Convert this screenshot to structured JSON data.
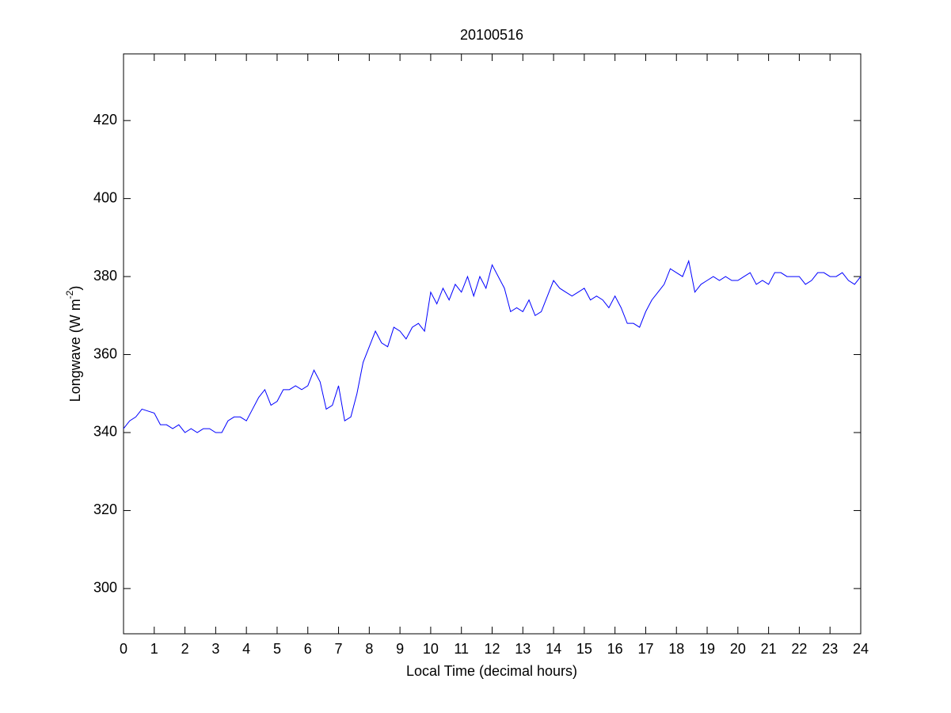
{
  "chart_data": {
    "type": "line",
    "title": "20100516",
    "x_label": "Local Time (decimal hours)",
    "y_label": {
      "text": "Longwave (W m",
      "sup": "-2",
      "end": ")"
    },
    "x": [
      0,
      0.2,
      0.4,
      0.6,
      0.8,
      1,
      1.2,
      1.4,
      1.6,
      1.8,
      2,
      2.2,
      2.4,
      2.6,
      2.8,
      3,
      3.2,
      3.4,
      3.6,
      3.8,
      4,
      4.2,
      4.4,
      4.6,
      4.8,
      5,
      5.2,
      5.4,
      5.6,
      5.8,
      6,
      6.2,
      6.4,
      6.6,
      6.8,
      7,
      7.2,
      7.4,
      7.6,
      7.8,
      8,
      8.2,
      8.4,
      8.6,
      8.8,
      9,
      9.2,
      9.4,
      9.6,
      9.8,
      10,
      10.2,
      10.4,
      10.6,
      10.8,
      11,
      11.2,
      11.4,
      11.6,
      11.8,
      12,
      12.2,
      12.4,
      12.6,
      12.8,
      13,
      13.2,
      13.4,
      13.6,
      13.8,
      14,
      14.2,
      14.4,
      14.6,
      14.8,
      15,
      15.2,
      15.4,
      15.6,
      15.8,
      16,
      16.2,
      16.4,
      16.6,
      16.8,
      17,
      17.2,
      17.4,
      17.6,
      17.8,
      18,
      18.2,
      18.4,
      18.6,
      18.8,
      19,
      19.2,
      19.4,
      19.6,
      19.8,
      20,
      20.2,
      20.4,
      20.6,
      20.8,
      21,
      21.2,
      21.4,
      21.6,
      21.8,
      22,
      22.2,
      22.4,
      22.6,
      22.8,
      23,
      23.2,
      23.4,
      23.6,
      23.8,
      24
    ],
    "series": [
      {
        "color": "#0000ff",
        "values": [
          341,
          343,
          344,
          346,
          345.5,
          345,
          342,
          342,
          341,
          342,
          340,
          341,
          340,
          341,
          341,
          340,
          340,
          343,
          344,
          344,
          343,
          346,
          349,
          351,
          347,
          348,
          351,
          351,
          352,
          351,
          352,
          356,
          353,
          346,
          347,
          352,
          343,
          344,
          350,
          358,
          362,
          366,
          363,
          362,
          367,
          366,
          364,
          367,
          368,
          366,
          376,
          373,
          377,
          374,
          378,
          376,
          380,
          375,
          380,
          377,
          383,
          380,
          377,
          371,
          372,
          371,
          374,
          370,
          371,
          375,
          379,
          377,
          376,
          375,
          376,
          377,
          374,
          375,
          374,
          372,
          375,
          372,
          368,
          368,
          367,
          371,
          374,
          376,
          378,
          382,
          381,
          380,
          384,
          376,
          378,
          379,
          380,
          379,
          380,
          379,
          379,
          380,
          381,
          378,
          379,
          378,
          381,
          381,
          380,
          380,
          380,
          378,
          379,
          381,
          381,
          380,
          380,
          381,
          379,
          378,
          380
        ]
      }
    ],
    "xlim": [
      0,
      24
    ],
    "ylim": [
      288.4,
      437.1
    ],
    "xticks": [
      0,
      1,
      2,
      3,
      4,
      5,
      6,
      7,
      8,
      9,
      10,
      11,
      12,
      13,
      14,
      15,
      16,
      17,
      18,
      19,
      20,
      21,
      22,
      23,
      24
    ],
    "yticks": [
      300,
      320,
      340,
      360,
      380,
      400,
      420
    ]
  }
}
